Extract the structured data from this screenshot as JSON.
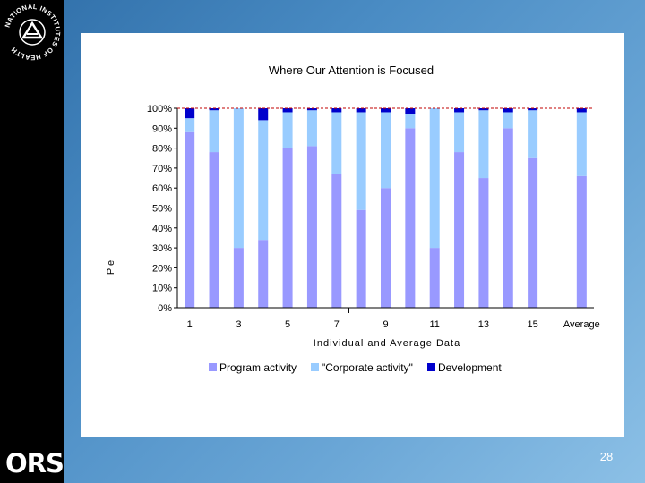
{
  "slide": {
    "page_number": "28",
    "logo_text": "ORS",
    "seal_text": "NATIONAL INSTITUTES OF HEALTH"
  },
  "colors": {
    "program": "#9999ff",
    "corporate": "#99ccff",
    "development": "#0000cc",
    "reference_line": "#c00000",
    "background": "#4a8cc4"
  },
  "chart_data": {
    "type": "bar",
    "stacked": true,
    "title": "Where Our Attention is Focused",
    "xlabel": "Individual and Average Data",
    "ylabel": "P e",
    "ylim": [
      0,
      100
    ],
    "y_ticks": [
      "0%",
      "10%",
      "20%",
      "30%",
      "40%",
      "50%",
      "60%",
      "70%",
      "80%",
      "90%",
      "100%"
    ],
    "categories": [
      "1",
      "2",
      "3",
      "4",
      "5",
      "6",
      "7",
      "8",
      "9",
      "10",
      "11",
      "12",
      "13",
      "14",
      "15",
      "",
      "Average"
    ],
    "x_tick_labels": [
      "1",
      "",
      "3",
      "",
      "5",
      "",
      "7",
      "",
      "9",
      "",
      "11",
      "",
      "13",
      "",
      "15",
      "",
      "Average"
    ],
    "series": [
      {
        "name": "Program activity",
        "values": [
          88,
          78,
          30,
          34,
          80,
          81,
          67,
          49,
          60,
          90,
          30,
          78,
          65,
          90,
          75,
          null,
          66
        ]
      },
      {
        "name": "\"Corporate activity\"",
        "values": [
          7,
          21,
          70,
          60,
          18,
          18,
          31,
          49,
          38,
          7,
          70,
          20,
          34,
          8,
          24,
          null,
          32
        ]
      },
      {
        "name": "Development",
        "values": [
          5,
          1,
          0,
          6,
          2,
          1,
          2,
          2,
          2,
          3,
          0,
          2,
          1,
          2,
          1,
          null,
          2
        ]
      }
    ],
    "reference_lines": [
      100,
      50
    ],
    "legend_position": "bottom",
    "grid": false
  }
}
